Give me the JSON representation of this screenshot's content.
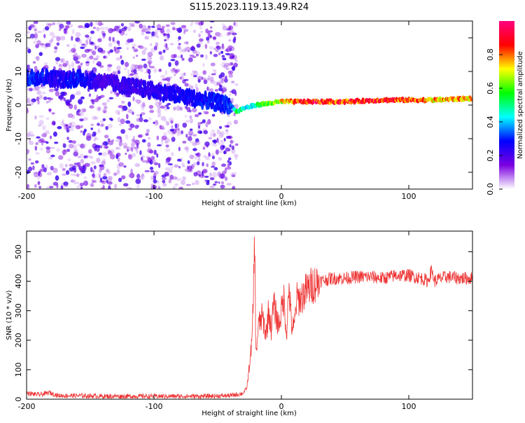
{
  "title": "S115.2023.119.13.49.R24",
  "chart_data": [
    {
      "type": "heatmap",
      "xlabel": "Height of straight line (km)",
      "ylabel": "Frequency (Hz)",
      "xlim": [
        -200,
        150
      ],
      "ylim": [
        -25,
        25
      ],
      "xticks": [
        -200,
        -100,
        0,
        100
      ],
      "xtick_labels": [
        "-200",
        "-100",
        "0",
        "100"
      ],
      "yticks": [
        -20,
        -10,
        0,
        10,
        20
      ],
      "ytick_labels": [
        "-20",
        "-10",
        "0",
        "10",
        "20"
      ],
      "colorbar": {
        "label": "Normalized spectral amplitude",
        "range": [
          0,
          1
        ],
        "ticks": [
          0,
          0.2,
          0.4,
          0.6,
          0.8
        ],
        "tick_labels": [
          "0.0",
          "0.2",
          "0.4",
          "0.6",
          "0.8"
        ],
        "colors": [
          "#ffffff",
          "#7b00e0",
          "#0000ff",
          "#00ffff",
          "#00ff00",
          "#ffff00",
          "#ff0000",
          "#ff0080"
        ]
      },
      "ridge": {
        "x": [
          -200,
          -190,
          -180,
          -170,
          -160,
          -150,
          -140,
          -40,
          -35,
          -30,
          -25,
          -20,
          -10,
          0,
          20,
          50,
          80,
          100,
          120,
          150
        ],
        "y": [
          8,
          8.5,
          8,
          7.5,
          8,
          7.5,
          7,
          0,
          -2,
          -1,
          -0.5,
          0,
          0.5,
          1,
          1,
          1,
          1.5,
          1.5,
          1.5,
          2
        ],
        "amplitude": [
          0.3,
          0.3,
          0.25,
          0.25,
          0.3,
          0.25,
          0.2,
          0.3,
          0.5,
          0.45,
          0.4,
          0.5,
          0.6,
          0.7,
          0.9,
          0.85,
          0.85,
          0.8,
          0.75,
          0.75
        ]
      }
    },
    {
      "type": "line",
      "xlabel": "Height of straight line (km)",
      "ylabel": "SNR (10 * v/v)",
      "xlim": [
        -200,
        150
      ],
      "ylim": [
        0,
        570
      ],
      "xticks": [
        -200,
        -100,
        0,
        100
      ],
      "xtick_labels": [
        "-200",
        "-100",
        "0",
        "100"
      ],
      "yticks": [
        0,
        100,
        200,
        300,
        400,
        500
      ],
      "ytick_labels": [
        "0",
        "100",
        "200",
        "300",
        "400",
        "500"
      ],
      "line_color": "#ee3333",
      "series": [
        {
          "x": [
            -200,
            -190,
            -182,
            -175,
            -160,
            -140,
            -120,
            -100,
            -80,
            -60,
            -40,
            -30,
            -27,
            -25,
            -23,
            -22,
            -21,
            -20,
            -18,
            -15,
            -12,
            -10,
            -8,
            -6,
            -4,
            -2,
            0,
            2,
            4,
            6,
            8,
            10,
            12,
            15,
            18,
            20,
            25,
            30,
            40,
            50,
            60,
            70,
            80,
            90,
            100,
            110,
            115,
            118,
            120,
            125,
            130,
            140,
            150
          ],
          "y": [
            20,
            15,
            22,
            12,
            12,
            10,
            10,
            10,
            10,
            10,
            12,
            20,
            40,
            120,
            200,
            350,
            560,
            150,
            250,
            280,
            220,
            300,
            240,
            320,
            280,
            250,
            300,
            340,
            220,
            380,
            250,
            240,
            340,
            340,
            360,
            370,
            390,
            400,
            410,
            410,
            415,
            415,
            410,
            420,
            420,
            410,
            400,
            440,
            400,
            410,
            415,
            410,
            410
          ]
        }
      ]
    }
  ]
}
